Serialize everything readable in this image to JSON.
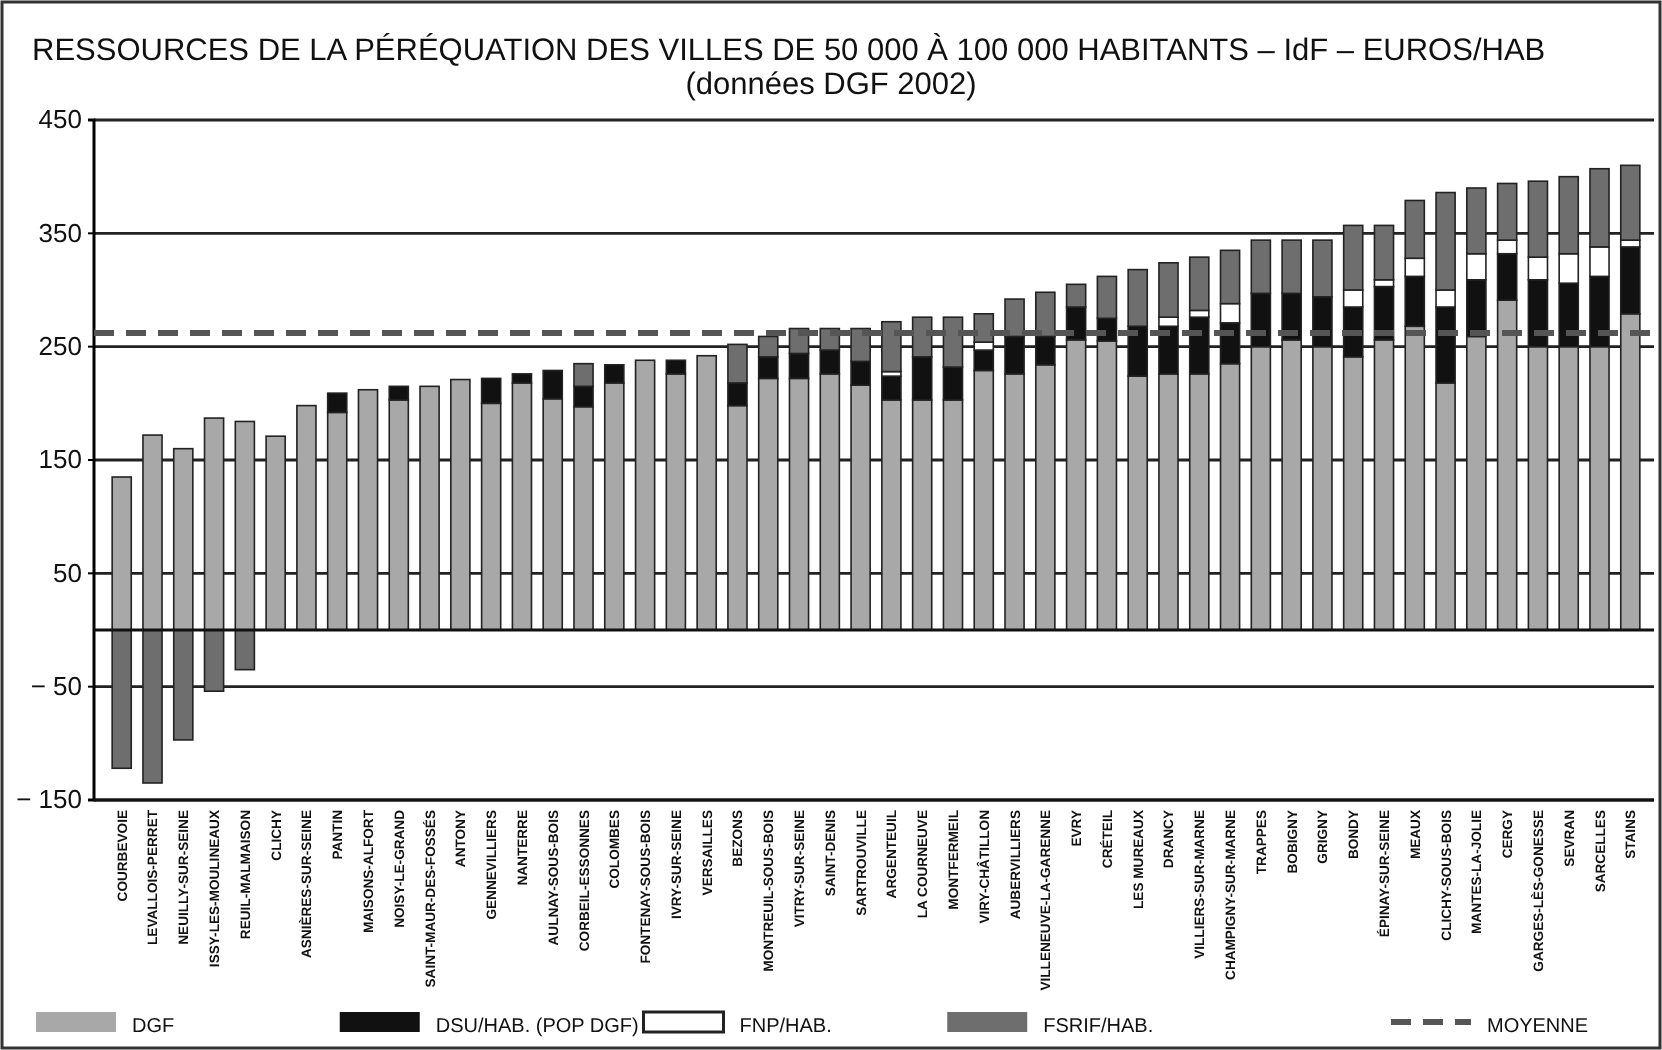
{
  "chart_data": {
    "type": "bar",
    "stacked": true,
    "title": "RESSOURCES DE LA PÉRÉQUATION DES VILLES DE 50 000 À 100 000 HABITANTS – IdF – EUROS/HAB (données DGF 2002)",
    "categories": [
      "COURBEVOIE",
      "LEVALLOIS-PERRET",
      "NEUILLY-SUR-SEINE",
      "ISSY-LES-MOULINEAUX",
      "REUIL-MALMAISON",
      "CLICHY",
      "ASNIÈRES-SUR-SEINE",
      "PANTIN",
      "MAISONS-ALFORT",
      "NOISY-LE-GRAND",
      "SAINT-MAUR-DES-FOSSÉS",
      "ANTONY",
      "GENNEVILLIERS",
      "NANTERRE",
      "AULNAY-SOUS-BOIS",
      "CORBEIL-ESSONNES",
      "COLOMBES",
      "FONTENAY-SOUS-BOIS",
      "IVRY-SUR-SEINE",
      "VERSAILLES",
      "BEZONS",
      "MONTREUIL-SOUS-BOIS",
      "VITRY-SUR-SEINE",
      "SAINT-DENIS",
      "SARTROUVILLE",
      "ARGENTEUIL",
      "LA COURNEUVE",
      "MONTFERMEIL",
      "VIRY-CHÂTILLON",
      "AUBERVILLIERS",
      "VILLENEUVE-LA-GARENNE",
      "EVRY",
      "CRÉTEIL",
      "LES MUREAUX",
      "DRANCY",
      "VILLIERS-SUR-MARNE",
      "CHAMPIGNY-SUR-MARNE",
      "TRAPPES",
      "BOBIGNY",
      "GRIGNY",
      "BONDY",
      "ÉPINAY-SUR-SEINE",
      "MEAUX",
      "CLICHY-SOUS-BOIS",
      "MANTES-LA-JOLIE",
      "CERGY",
      "GARGES-LÈS-GONESSE",
      "SEVRAN",
      "SARCELLES",
      "STAINS"
    ],
    "series": [
      {
        "name": "DGF",
        "color": "#a8a8a8",
        "values": [
          135,
          172,
          160,
          187,
          184,
          171,
          198,
          192,
          212,
          203,
          215,
          221,
          200,
          218,
          204,
          197,
          218,
          238,
          226,
          242,
          198,
          222,
          222,
          226,
          216,
          203,
          203,
          203,
          229,
          226,
          234,
          256,
          255,
          224,
          226,
          226,
          235,
          250,
          256,
          250,
          241,
          256,
          268,
          218,
          259,
          291,
          250,
          250,
          250,
          279
        ]
      },
      {
        "name": "DSU/HAB. (POP DGF)",
        "color": "#111111",
        "values": [
          null,
          null,
          null,
          null,
          null,
          null,
          null,
          17,
          null,
          12,
          null,
          null,
          22,
          8,
          25,
          18,
          16,
          null,
          12,
          null,
          20,
          19,
          22,
          21,
          21,
          21,
          38,
          29,
          18,
          33,
          25,
          29,
          20,
          44,
          42,
          50,
          36,
          47,
          41,
          44,
          44,
          47,
          44,
          67,
          50,
          41,
          59,
          56,
          62,
          59
        ]
      },
      {
        "name": "FNP/HAB.",
        "color": "#ffffff",
        "values": [
          null,
          null,
          null,
          null,
          null,
          null,
          null,
          null,
          null,
          null,
          null,
          null,
          null,
          null,
          null,
          null,
          null,
          null,
          null,
          null,
          null,
          null,
          null,
          null,
          null,
          4,
          null,
          null,
          7,
          null,
          null,
          null,
          null,
          null,
          8,
          6,
          17,
          null,
          null,
          null,
          15,
          6,
          16,
          15,
          23,
          12,
          20,
          26,
          26,
          6
        ]
      },
      {
        "name": "FSRIF/HAB.",
        "color": "#6e6e6e",
        "values": [
          -122,
          -135,
          -97,
          -54,
          -35,
          null,
          null,
          null,
          null,
          null,
          null,
          null,
          null,
          null,
          null,
          20,
          null,
          null,
          null,
          null,
          34,
          18,
          22,
          19,
          29,
          44,
          35,
          44,
          25,
          33,
          39,
          20,
          37,
          50,
          48,
          47,
          47,
          47,
          47,
          50,
          57,
          48,
          51,
          86,
          58,
          50,
          67,
          68,
          69,
          66
        ]
      }
    ],
    "ylim": [
      -150,
      450
    ],
    "yticks": [
      -150,
      -50,
      50,
      150,
      250,
      350,
      450
    ],
    "grid": "y",
    "legend": "bottom",
    "ref_lines": [
      {
        "axis": "y",
        "value": 262,
        "label": "MOYENNE",
        "color": "#555555",
        "line_style": "dashed"
      }
    ]
  }
}
